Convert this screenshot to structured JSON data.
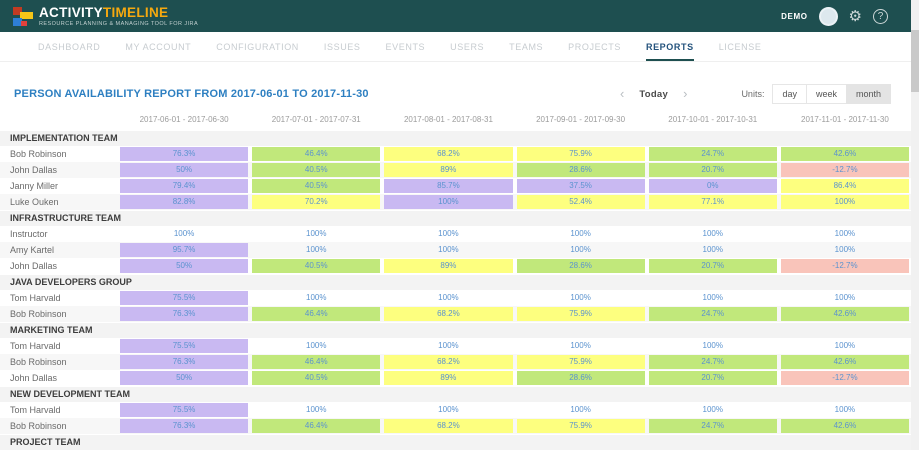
{
  "header": {
    "brand_activity": "ACTIVITY",
    "brand_timeline": "TIMELINE",
    "tagline": "RESOURCE PLANNING & MANAGING TOOL FOR JIRA",
    "user": "DEMO"
  },
  "nav": {
    "items": [
      "DASHBOARD",
      "MY ACCOUNT",
      "CONFIGURATION",
      "ISSUES",
      "EVENTS",
      "USERS",
      "TEAMS",
      "PROJECTS",
      "REPORTS",
      "LICENSE"
    ],
    "active": "REPORTS"
  },
  "report": {
    "title": "PERSON AVAILABILITY REPORT FROM 2017-06-01 TO 2017-11-30",
    "prev_icon": "‹",
    "next_icon": "›",
    "today_label": "Today",
    "units_label": "Units:",
    "units": [
      "day",
      "week",
      "month"
    ],
    "selected_unit": "month"
  },
  "colors": {
    "purple": "#c9b9f2",
    "green": "#c1e87b",
    "yellow": "#fdff7f",
    "red": "#f9c4ba",
    "topbar": "#1e4f50",
    "title_blue": "#2d7fc1",
    "brand_orange": "#f6a90f",
    "cell_text": "#5b93cf"
  },
  "table": {
    "columns": [
      "2017-06-01 - 2017-06-30",
      "2017-07-01 - 2017-07-31",
      "2017-08-01 - 2017-08-31",
      "2017-09-01 - 2017-09-30",
      "2017-10-01 - 2017-10-31",
      "2017-11-01 - 2017-11-30"
    ],
    "groups": [
      {
        "name": "IMPLEMENTATION TEAM",
        "members": [
          {
            "name": "Bob Robinson",
            "cells": [
              {
                "v": "76.3%",
                "c": "purple"
              },
              {
                "v": "46.4%",
                "c": "green"
              },
              {
                "v": "68.2%",
                "c": "yellow"
              },
              {
                "v": "75.9%",
                "c": "yellow"
              },
              {
                "v": "24.7%",
                "c": "green"
              },
              {
                "v": "42.6%",
                "c": "green"
              }
            ]
          },
          {
            "name": "John Dallas",
            "cells": [
              {
                "v": "50%",
                "c": "purple"
              },
              {
                "v": "40.5%",
                "c": "green"
              },
              {
                "v": "89%",
                "c": "yellow"
              },
              {
                "v": "28.6%",
                "c": "green"
              },
              {
                "v": "20.7%",
                "c": "green"
              },
              {
                "v": "-12.7%",
                "c": "red"
              }
            ]
          },
          {
            "name": "Janny Miller",
            "cells": [
              {
                "v": "79.4%",
                "c": "purple"
              },
              {
                "v": "40.5%",
                "c": "green"
              },
              {
                "v": "85.7%",
                "c": "purple"
              },
              {
                "v": "37.5%",
                "c": "purple"
              },
              {
                "v": "0%",
                "c": "purple"
              },
              {
                "v": "86.4%",
                "c": "yellow"
              }
            ]
          },
          {
            "name": "Luke Ouken",
            "cells": [
              {
                "v": "82.8%",
                "c": "purple"
              },
              {
                "v": "70.2%",
                "c": "yellow"
              },
              {
                "v": "100%",
                "c": "purple"
              },
              {
                "v": "52.4%",
                "c": "yellow"
              },
              {
                "v": "77.1%",
                "c": "yellow"
              },
              {
                "v": "100%",
                "c": "yellow"
              }
            ]
          }
        ]
      },
      {
        "name": "INFRASTRUCTURE TEAM",
        "members": [
          {
            "name": "Instructor",
            "cells": [
              {
                "v": "100%",
                "c": "none"
              },
              {
                "v": "100%",
                "c": "none"
              },
              {
                "v": "100%",
                "c": "none"
              },
              {
                "v": "100%",
                "c": "none"
              },
              {
                "v": "100%",
                "c": "none"
              },
              {
                "v": "100%",
                "c": "none"
              }
            ]
          },
          {
            "name": "Amy Kartel",
            "cells": [
              {
                "v": "95.7%",
                "c": "purple"
              },
              {
                "v": "100%",
                "c": "none"
              },
              {
                "v": "100%",
                "c": "none"
              },
              {
                "v": "100%",
                "c": "none"
              },
              {
                "v": "100%",
                "c": "none"
              },
              {
                "v": "100%",
                "c": "none"
              }
            ]
          },
          {
            "name": "John Dallas",
            "cells": [
              {
                "v": "50%",
                "c": "purple"
              },
              {
                "v": "40.5%",
                "c": "green"
              },
              {
                "v": "89%",
                "c": "yellow"
              },
              {
                "v": "28.6%",
                "c": "green"
              },
              {
                "v": "20.7%",
                "c": "green"
              },
              {
                "v": "-12.7%",
                "c": "red"
              }
            ]
          }
        ]
      },
      {
        "name": "JAVA DEVELOPERS GROUP",
        "members": [
          {
            "name": "Tom Harvald",
            "cells": [
              {
                "v": "75.5%",
                "c": "purple"
              },
              {
                "v": "100%",
                "c": "none"
              },
              {
                "v": "100%",
                "c": "none"
              },
              {
                "v": "100%",
                "c": "none"
              },
              {
                "v": "100%",
                "c": "none"
              },
              {
                "v": "100%",
                "c": "none"
              }
            ]
          },
          {
            "name": "Bob Robinson",
            "cells": [
              {
                "v": "76.3%",
                "c": "purple"
              },
              {
                "v": "46.4%",
                "c": "green"
              },
              {
                "v": "68.2%",
                "c": "yellow"
              },
              {
                "v": "75.9%",
                "c": "yellow"
              },
              {
                "v": "24.7%",
                "c": "green"
              },
              {
                "v": "42.6%",
                "c": "green"
              }
            ]
          }
        ]
      },
      {
        "name": "MARKETING TEAM",
        "members": [
          {
            "name": "Tom Harvald",
            "cells": [
              {
                "v": "75.5%",
                "c": "purple"
              },
              {
                "v": "100%",
                "c": "none"
              },
              {
                "v": "100%",
                "c": "none"
              },
              {
                "v": "100%",
                "c": "none"
              },
              {
                "v": "100%",
                "c": "none"
              },
              {
                "v": "100%",
                "c": "none"
              }
            ]
          },
          {
            "name": "Bob Robinson",
            "cells": [
              {
                "v": "76.3%",
                "c": "purple"
              },
              {
                "v": "46.4%",
                "c": "green"
              },
              {
                "v": "68.2%",
                "c": "yellow"
              },
              {
                "v": "75.9%",
                "c": "yellow"
              },
              {
                "v": "24.7%",
                "c": "green"
              },
              {
                "v": "42.6%",
                "c": "green"
              }
            ]
          },
          {
            "name": "John Dallas",
            "cells": [
              {
                "v": "50%",
                "c": "purple"
              },
              {
                "v": "40.5%",
                "c": "green"
              },
              {
                "v": "89%",
                "c": "yellow"
              },
              {
                "v": "28.6%",
                "c": "green"
              },
              {
                "v": "20.7%",
                "c": "green"
              },
              {
                "v": "-12.7%",
                "c": "red"
              }
            ]
          }
        ]
      },
      {
        "name": "NEW DEVELOPMENT TEAM",
        "members": [
          {
            "name": "Tom Harvald",
            "cells": [
              {
                "v": "75.5%",
                "c": "purple"
              },
              {
                "v": "100%",
                "c": "none"
              },
              {
                "v": "100%",
                "c": "none"
              },
              {
                "v": "100%",
                "c": "none"
              },
              {
                "v": "100%",
                "c": "none"
              },
              {
                "v": "100%",
                "c": "none"
              }
            ]
          },
          {
            "name": "Bob Robinson",
            "cells": [
              {
                "v": "76.3%",
                "c": "purple"
              },
              {
                "v": "46.4%",
                "c": "green"
              },
              {
                "v": "68.2%",
                "c": "yellow"
              },
              {
                "v": "75.9%",
                "c": "yellow"
              },
              {
                "v": "24.7%",
                "c": "green"
              },
              {
                "v": "42.6%",
                "c": "green"
              }
            ]
          }
        ]
      },
      {
        "name": "PROJECT TEAM",
        "members": [
          {
            "name": "",
            "cells": [
              {
                "v": "",
                "c": "purple"
              },
              {
                "v": "",
                "c": "green"
              },
              {
                "v": "",
                "c": "yellow"
              },
              {
                "v": "",
                "c": "yellow"
              },
              {
                "v": "",
                "c": "green"
              },
              {
                "v": "",
                "c": "green"
              }
            ]
          }
        ]
      }
    ]
  }
}
